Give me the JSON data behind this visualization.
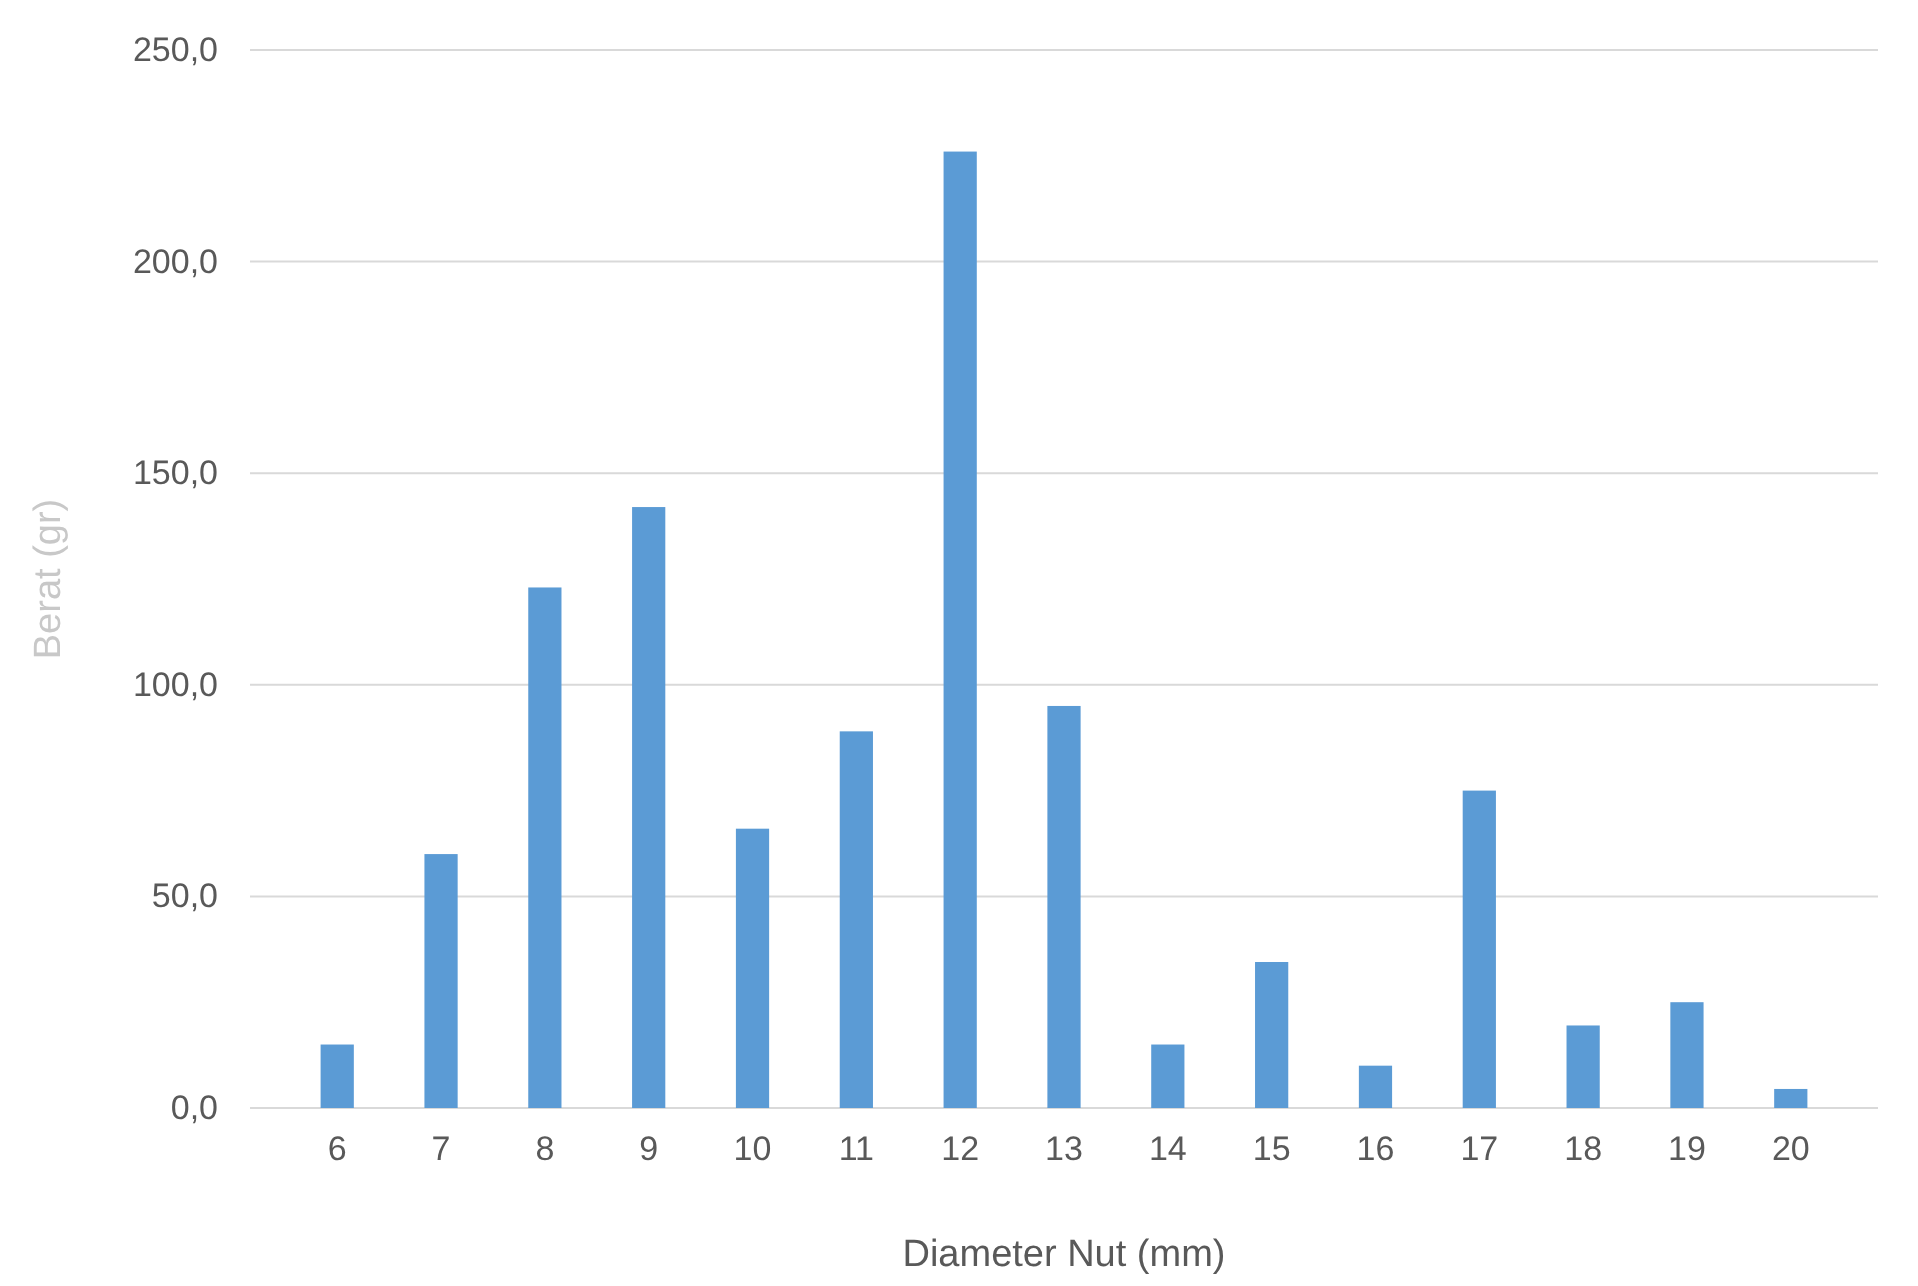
{
  "chart_data": {
    "type": "bar",
    "xlabel": "Diameter Nut (mm)",
    "ylabel": "Berat (gr)",
    "categories": [
      "6",
      "7",
      "8",
      "9",
      "10",
      "11",
      "12",
      "13",
      "14",
      "15",
      "16",
      "17",
      "18",
      "19",
      "20"
    ],
    "values": [
      15,
      60,
      123,
      142,
      66,
      89,
      226,
      95,
      15,
      34.5,
      10,
      75,
      19.5,
      25,
      4.5
    ],
    "color": "#5b9bd5",
    "ylim": [
      0,
      250
    ],
    "yticks": [
      {
        "value": 0,
        "label": "0,0"
      },
      {
        "value": 50,
        "label": "50,0"
      },
      {
        "value": 100,
        "label": "100,0"
      },
      {
        "value": 150,
        "label": "150,0"
      },
      {
        "value": 200,
        "label": "200,0"
      },
      {
        "value": 250,
        "label": "250,0"
      }
    ],
    "grid": "y"
  }
}
